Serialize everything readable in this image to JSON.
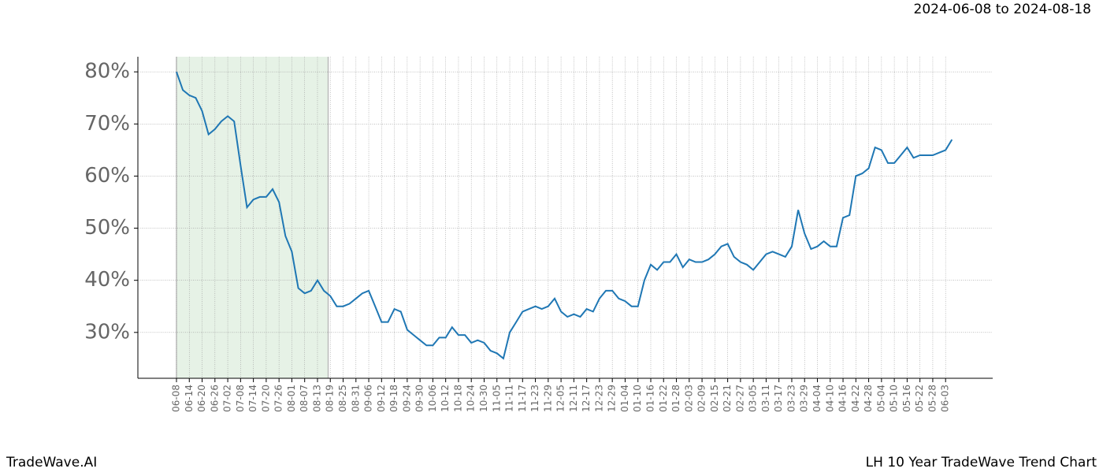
{
  "chart_data": {
    "type": "line",
    "range_label": "2024-06-08 to 2024-08-18",
    "highlight": {
      "start": "2024-06-08",
      "end": "2024-08-18",
      "color": "#e6f2e6"
    },
    "footer_left": "TradeWave.AI",
    "footer_right": "LH 10 Year TradeWave Trend Chart",
    "categories": [
      "06-08",
      null,
      "06-14",
      null,
      "06-20",
      null,
      "06-26",
      null,
      "07-02",
      null,
      "07-08",
      null,
      "07-14",
      null,
      "07-20",
      null,
      "07-26",
      null,
      "08-01",
      null,
      "08-07",
      null,
      "08-13",
      null,
      "08-19",
      null,
      "08-25",
      null,
      "08-31",
      null,
      "09-06",
      null,
      "09-12",
      null,
      "09-18",
      null,
      "09-24",
      null,
      "09-30",
      null,
      "10-06",
      null,
      "10-12",
      null,
      "10-18",
      null,
      "10-24",
      null,
      "10-30",
      null,
      "11-05",
      null,
      "11-11",
      null,
      "11-17",
      null,
      "11-23",
      null,
      "11-29",
      null,
      "12-05",
      null,
      "12-11",
      null,
      "12-17",
      null,
      "12-23",
      null,
      "12-29",
      null,
      "01-04",
      null,
      "01-10",
      null,
      "01-16",
      null,
      "01-22",
      null,
      "01-28",
      null,
      "02-03",
      null,
      "02-09",
      null,
      "02-15",
      null,
      "02-21",
      null,
      "02-27",
      null,
      "03-05",
      null,
      "03-11",
      null,
      "03-17",
      null,
      "03-23",
      null,
      "03-29",
      null,
      "04-04",
      null,
      "04-10",
      null,
      "04-16",
      null,
      "04-22",
      null,
      "04-28",
      null,
      "05-04",
      null,
      "05-10",
      null,
      "05-16",
      null,
      "05-22",
      null,
      "05-28",
      null,
      "06-03",
      null
    ],
    "series": [
      {
        "color": "#1f77b4",
        "values": [
          80,
          76.5,
          75.5,
          75,
          72.5,
          68,
          69,
          70.5,
          71.5,
          70.5,
          62,
          54,
          55.5,
          56,
          56,
          57.5,
          55,
          48.5,
          45.5,
          38.5,
          37.5,
          38,
          40,
          38,
          37,
          35,
          35,
          35.5,
          36.5,
          37.5,
          38,
          35,
          32,
          32,
          34.5,
          34,
          30.5,
          29.5,
          28.5,
          27.5,
          27.5,
          29,
          29,
          31,
          29.5,
          29.5,
          28,
          28.5,
          28,
          26.5,
          26,
          25,
          30,
          32,
          34,
          34.5,
          35,
          34.5,
          35,
          36.5,
          34,
          33,
          33.5,
          33,
          34.5,
          34,
          36.5,
          38,
          38,
          36.5,
          36,
          35,
          35,
          40,
          43,
          42,
          43.5,
          43.5,
          45,
          42.5,
          44,
          43.5,
          43.5,
          44,
          45,
          46.5,
          47,
          44.5,
          43.5,
          43,
          42,
          43.5,
          45,
          45.5,
          45,
          44.5,
          46.5,
          53.5,
          49,
          46,
          46.5,
          47.5,
          46.5,
          46.5,
          52,
          52.5,
          60,
          60.5,
          61.5,
          65.5,
          65,
          62.5,
          62.5,
          64,
          65.5,
          63.5,
          64,
          64,
          64,
          64.5,
          65,
          67
        ]
      }
    ],
    "ylim": [
      21.2,
      82.9
    ],
    "yticks": [
      {
        "value": 30,
        "label": "30%"
      },
      {
        "value": 40,
        "label": "40%"
      },
      {
        "value": 50,
        "label": "50%"
      },
      {
        "value": 60,
        "label": "60%"
      },
      {
        "value": 70,
        "label": "70%"
      },
      {
        "value": 80,
        "label": "80%"
      }
    ],
    "grid": true
  }
}
